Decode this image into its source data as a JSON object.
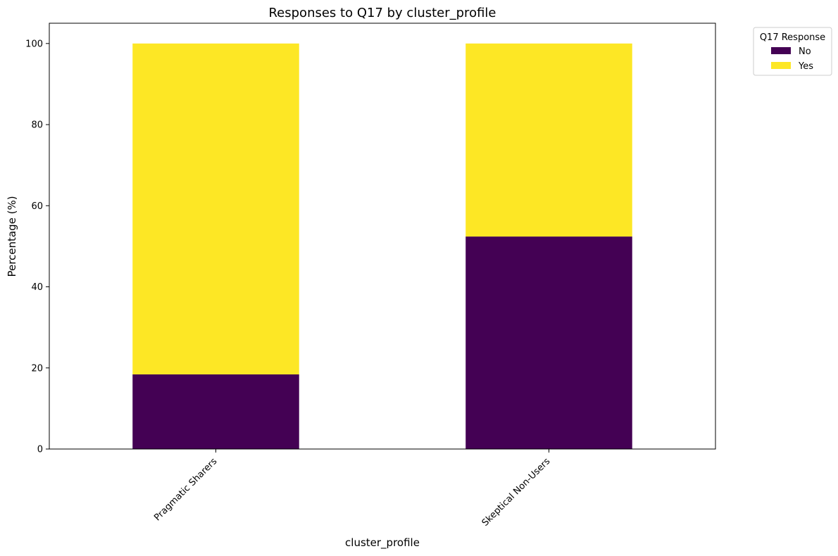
{
  "chart_data": {
    "type": "bar",
    "stacked": true,
    "title": "Responses to Q17 by cluster_profile",
    "xlabel": "cluster_profile",
    "ylabel": "Percentage (%)",
    "categories": [
      "Pragmatic Sharers",
      "Skeptical Non-Users"
    ],
    "series": [
      {
        "name": "No",
        "values": [
          18.4,
          52.4
        ],
        "color": "#440154"
      },
      {
        "name": "Yes",
        "values": [
          81.6,
          47.6
        ],
        "color": "#fde725"
      }
    ],
    "ylim": [
      0,
      105
    ],
    "yticks": [
      0,
      20,
      40,
      60,
      80,
      100
    ],
    "legend": {
      "title": "Q17 Response",
      "placement": "outside-top-right"
    },
    "grid": false
  }
}
